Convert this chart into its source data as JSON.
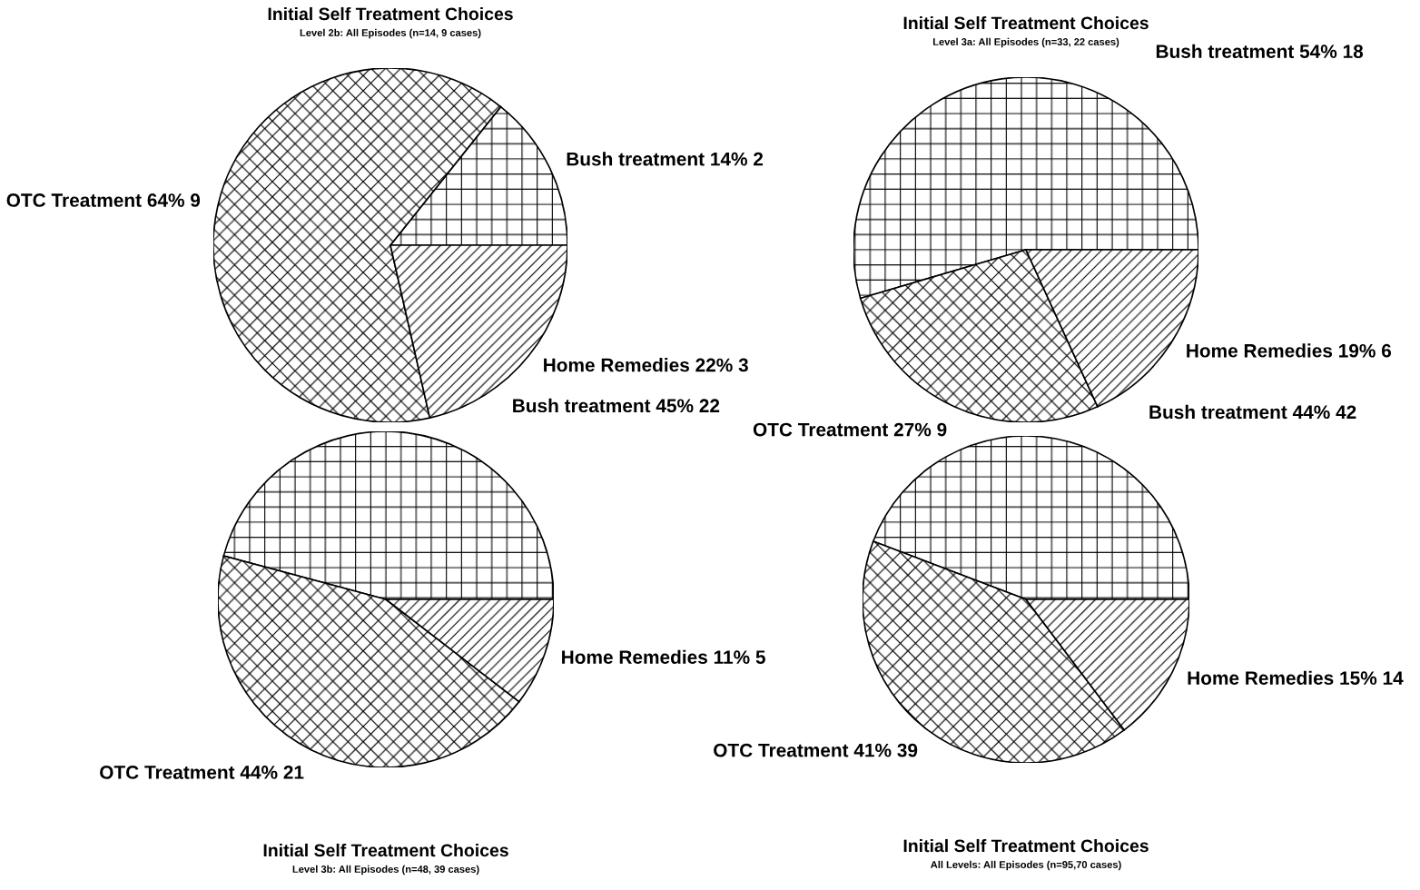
{
  "chart_data": [
    {
      "type": "pie",
      "title": "Initial Self Treatment Choices",
      "subtitle": "Level 2b: All Episodes (n=14, 9 cases)",
      "categories": [
        "Bush treatment",
        "OTC Treatment",
        "Home Remedies"
      ],
      "values": [
        2,
        9,
        3
      ],
      "value_labels": [
        "14% 2",
        "64% 9",
        "22% 3"
      ],
      "colors": [
        "#000000",
        "#000000",
        "#000000"
      ]
    },
    {
      "type": "pie",
      "title": "Initial Self Treatment Choices",
      "subtitle": "Level 3a: All Episodes (n=33, 22 cases)",
      "categories": [
        "Bush treatment",
        "OTC Treatment",
        "Home Remedies"
      ],
      "values": [
        18,
        9,
        6
      ],
      "value_labels": [
        "54% 18",
        "27% 9",
        "19% 6"
      ],
      "colors": [
        "#000000",
        "#000000",
        "#000000"
      ]
    },
    {
      "type": "pie",
      "title": "Initial Self Treatment Choices",
      "subtitle": "Level 3b: All Episodes (n=48, 39 cases)",
      "categories": [
        "Bush treatment",
        "OTC Treatment",
        "Home Remedies"
      ],
      "values": [
        22,
        21,
        5
      ],
      "value_labels": [
        "45% 22",
        "44% 21",
        "11% 5"
      ],
      "colors": [
        "#000000",
        "#000000",
        "#000000"
      ]
    },
    {
      "type": "pie",
      "title": "Initial Self Treatment Choices",
      "subtitle": "All Levels: All Episodes (n=95,70 cases)",
      "categories": [
        "Bush treatment",
        "OTC Treatment",
        "Home Remedies"
      ],
      "values": [
        42,
        39,
        14
      ],
      "value_labels": [
        "44% 42",
        "41% 39",
        "15% 14"
      ],
      "colors": [
        "#000000",
        "#000000",
        "#000000"
      ]
    }
  ]
}
